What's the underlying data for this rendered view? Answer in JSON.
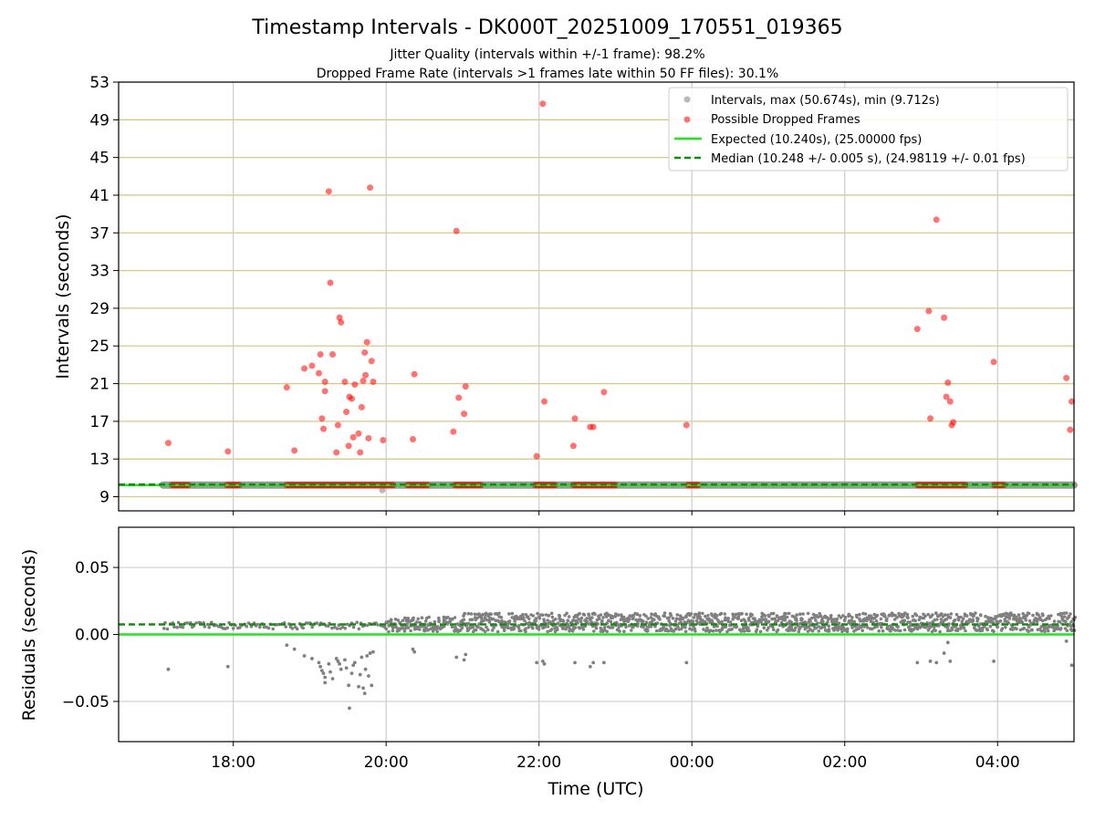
{
  "chart_data": [
    {
      "type": "scatter",
      "title": "Timestamp Intervals - DK000T_20251009_170551_019365",
      "subtitle_1": "Jitter Quality (intervals within +/-1 frame): 98.2%",
      "subtitle_2": "Dropped Frame Rate (intervals >1 frames late within 50 FF files): 30.1%",
      "xlabel": "",
      "ylabel": "Intervals (seconds)",
      "xlim_hours": [
        16.5,
        29.0
      ],
      "ylim": [
        7.5,
        53
      ],
      "y_ticks": [
        9,
        13,
        17,
        21,
        25,
        29,
        33,
        37,
        41,
        45,
        49,
        53
      ],
      "x_ticks": [
        18,
        20,
        22,
        24,
        26,
        28
      ],
      "legend": {
        "placement": "top-right",
        "entries": [
          "Intervals, max (50.674s), min (9.712s)",
          "Possible Dropped Frames",
          "Expected (10.240s), (25.00000 fps)",
          "Median (10.248 +/- 0.005 s), (24.98119 +/- 0.01 fps)"
        ]
      },
      "series": [
        {
          "name": "Intervals",
          "color": "#808080",
          "segments": [
            [
              17.08,
              29.0
            ]
          ],
          "value": 10.24,
          "outliers": [
            {
              "x": 19.95,
              "y": 9.7
            }
          ]
        },
        {
          "name": "Possible Dropped Frames",
          "color": "#ff0000",
          "baseline_value": 10.24,
          "baseline_clusters": [
            [
              17.2,
              17.42
            ],
            [
              17.92,
              18.1
            ],
            [
              18.7,
              20.1
            ],
            [
              20.28,
              20.55
            ],
            [
              20.9,
              21.25
            ],
            [
              21.95,
              22.22
            ],
            [
              22.45,
              23.02
            ],
            [
              23.95,
              24.1
            ],
            [
              26.95,
              27.6
            ],
            [
              27.95,
              28.1
            ]
          ],
          "points": [
            {
              "x": 17.15,
              "y": 14.7
            },
            {
              "x": 17.93,
              "y": 13.8
            },
            {
              "x": 18.7,
              "y": 20.6
            },
            {
              "x": 18.8,
              "y": 13.9
            },
            {
              "x": 18.93,
              "y": 22.6
            },
            {
              "x": 19.03,
              "y": 22.9
            },
            {
              "x": 19.12,
              "y": 22.1
            },
            {
              "x": 19.14,
              "y": 24.1
            },
            {
              "x": 19.16,
              "y": 17.3
            },
            {
              "x": 19.18,
              "y": 16.2
            },
            {
              "x": 19.2,
              "y": 21.2
            },
            {
              "x": 19.2,
              "y": 20.2
            },
            {
              "x": 19.25,
              "y": 41.4
            },
            {
              "x": 19.27,
              "y": 31.7
            },
            {
              "x": 19.3,
              "y": 24.1
            },
            {
              "x": 19.35,
              "y": 13.7
            },
            {
              "x": 19.37,
              "y": 16.6
            },
            {
              "x": 19.39,
              "y": 28.0
            },
            {
              "x": 19.41,
              "y": 27.5
            },
            {
              "x": 19.46,
              "y": 21.2
            },
            {
              "x": 19.48,
              "y": 18.0
            },
            {
              "x": 19.51,
              "y": 14.4
            },
            {
              "x": 19.52,
              "y": 19.6
            },
            {
              "x": 19.55,
              "y": 19.4
            },
            {
              "x": 19.57,
              "y": 15.3
            },
            {
              "x": 19.59,
              "y": 20.9
            },
            {
              "x": 19.64,
              "y": 15.7
            },
            {
              "x": 19.66,
              "y": 13.7
            },
            {
              "x": 19.68,
              "y": 18.5
            },
            {
              "x": 19.7,
              "y": 21.3
            },
            {
              "x": 19.72,
              "y": 24.3
            },
            {
              "x": 19.73,
              "y": 21.9
            },
            {
              "x": 19.75,
              "y": 25.4
            },
            {
              "x": 19.77,
              "y": 15.2
            },
            {
              "x": 19.79,
              "y": 41.8
            },
            {
              "x": 19.81,
              "y": 23.4
            },
            {
              "x": 19.83,
              "y": 21.2
            },
            {
              "x": 19.96,
              "y": 15.0
            },
            {
              "x": 20.35,
              "y": 15.1
            },
            {
              "x": 20.37,
              "y": 22.0
            },
            {
              "x": 20.88,
              "y": 15.9
            },
            {
              "x": 20.92,
              "y": 37.2
            },
            {
              "x": 20.95,
              "y": 19.5
            },
            {
              "x": 21.02,
              "y": 17.8
            },
            {
              "x": 21.04,
              "y": 20.7
            },
            {
              "x": 21.97,
              "y": 13.3
            },
            {
              "x": 22.05,
              "y": 50.7
            },
            {
              "x": 22.07,
              "y": 19.1
            },
            {
              "x": 22.45,
              "y": 14.4
            },
            {
              "x": 22.47,
              "y": 17.3
            },
            {
              "x": 22.67,
              "y": 16.4
            },
            {
              "x": 22.71,
              "y": 16.4
            },
            {
              "x": 22.85,
              "y": 20.1
            },
            {
              "x": 23.93,
              "y": 16.6
            },
            {
              "x": 26.95,
              "y": 26.8
            },
            {
              "x": 27.1,
              "y": 28.7
            },
            {
              "x": 27.12,
              "y": 17.3
            },
            {
              "x": 27.2,
              "y": 38.4
            },
            {
              "x": 27.3,
              "y": 28.0
            },
            {
              "x": 27.33,
              "y": 19.6
            },
            {
              "x": 27.35,
              "y": 21.1
            },
            {
              "x": 27.38,
              "y": 19.1
            },
            {
              "x": 27.4,
              "y": 16.6
            },
            {
              "x": 27.42,
              "y": 16.9
            },
            {
              "x": 27.95,
              "y": 23.3
            },
            {
              "x": 28.9,
              "y": 21.6
            },
            {
              "x": 28.95,
              "y": 16.1
            },
            {
              "x": 28.97,
              "y": 19.1
            }
          ]
        },
        {
          "name": "Expected",
          "color": "#1ee61e",
          "value": 10.24
        },
        {
          "name": "Median",
          "color": "#138a13",
          "value": 10.248
        }
      ]
    },
    {
      "type": "scatter",
      "xlabel": "Time (UTC)",
      "ylabel": "Residuals (seconds)",
      "xlim_hours": [
        16.5,
        29.0
      ],
      "ylim": [
        -0.08,
        0.08
      ],
      "y_ticks": [
        0.05,
        0.0,
        -0.05
      ],
      "y_tick_labels": [
        "0.05",
        "0.00",
        "−0.05"
      ],
      "x_ticks": [
        18,
        20,
        22,
        24,
        26,
        28
      ],
      "x_tick_labels": [
        "18:00",
        "20:00",
        "22:00",
        "00:00",
        "02:00",
        "04:00"
      ],
      "bands": [
        {
          "from": 17.08,
          "to": 20.8,
          "low": 0.004,
          "high": 0.009
        },
        {
          "from": 20.0,
          "to": 20.9,
          "low": 0.002,
          "high": 0.013
        },
        {
          "from": 20.9,
          "to": 29.0,
          "low": 0.002,
          "high": 0.016
        }
      ],
      "series": [
        {
          "name": "Residuals",
          "color": "#808080",
          "outliers": [
            {
              "x": 17.15,
              "y": -0.026
            },
            {
              "x": 17.93,
              "y": -0.024
            },
            {
              "x": 18.7,
              "y": -0.008
            },
            {
              "x": 18.8,
              "y": -0.011
            },
            {
              "x": 18.93,
              "y": -0.016
            },
            {
              "x": 19.03,
              "y": -0.018
            },
            {
              "x": 19.12,
              "y": -0.021
            },
            {
              "x": 19.14,
              "y": -0.024
            },
            {
              "x": 19.16,
              "y": -0.027
            },
            {
              "x": 19.18,
              "y": -0.029
            },
            {
              "x": 19.2,
              "y": -0.032
            },
            {
              "x": 19.2,
              "y": -0.036
            },
            {
              "x": 19.25,
              "y": -0.022
            },
            {
              "x": 19.27,
              "y": -0.028
            },
            {
              "x": 19.3,
              "y": -0.033
            },
            {
              "x": 19.35,
              "y": -0.018
            },
            {
              "x": 19.37,
              "y": -0.02
            },
            {
              "x": 19.39,
              "y": -0.022
            },
            {
              "x": 19.41,
              "y": -0.026
            },
            {
              "x": 19.46,
              "y": -0.019
            },
            {
              "x": 19.48,
              "y": -0.025
            },
            {
              "x": 19.51,
              "y": -0.038
            },
            {
              "x": 19.52,
              "y": -0.055
            },
            {
              "x": 19.55,
              "y": -0.029
            },
            {
              "x": 19.57,
              "y": -0.023
            },
            {
              "x": 19.59,
              "y": -0.021
            },
            {
              "x": 19.64,
              "y": -0.039
            },
            {
              "x": 19.66,
              "y": -0.03
            },
            {
              "x": 19.68,
              "y": -0.017
            },
            {
              "x": 19.7,
              "y": -0.04
            },
            {
              "x": 19.72,
              "y": -0.044
            },
            {
              "x": 19.73,
              "y": -0.026
            },
            {
              "x": 19.75,
              "y": -0.016
            },
            {
              "x": 19.77,
              "y": -0.031
            },
            {
              "x": 19.79,
              "y": -0.014
            },
            {
              "x": 19.81,
              "y": -0.038
            },
            {
              "x": 19.83,
              "y": -0.013
            },
            {
              "x": 20.35,
              "y": -0.011
            },
            {
              "x": 20.37,
              "y": -0.013
            },
            {
              "x": 20.92,
              "y": -0.017
            },
            {
              "x": 21.02,
              "y": -0.019
            },
            {
              "x": 21.04,
              "y": -0.015
            },
            {
              "x": 21.97,
              "y": -0.021
            },
            {
              "x": 22.05,
              "y": -0.02
            },
            {
              "x": 22.07,
              "y": -0.022
            },
            {
              "x": 22.47,
              "y": -0.021
            },
            {
              "x": 22.67,
              "y": -0.024
            },
            {
              "x": 22.71,
              "y": -0.021
            },
            {
              "x": 22.85,
              "y": -0.021
            },
            {
              "x": 23.93,
              "y": -0.021
            },
            {
              "x": 26.95,
              "y": -0.021
            },
            {
              "x": 27.12,
              "y": -0.02
            },
            {
              "x": 27.2,
              "y": -0.021
            },
            {
              "x": 27.3,
              "y": -0.014
            },
            {
              "x": 27.35,
              "y": -0.006
            },
            {
              "x": 27.38,
              "y": -0.02
            },
            {
              "x": 27.95,
              "y": -0.02
            },
            {
              "x": 28.9,
              "y": -0.005
            },
            {
              "x": 28.97,
              "y": -0.023
            }
          ]
        },
        {
          "name": "Expected",
          "color": "#1ee61e",
          "value": 0.0
        },
        {
          "name": "Median",
          "color": "#138a13",
          "value": 0.0075
        }
      ]
    }
  ]
}
